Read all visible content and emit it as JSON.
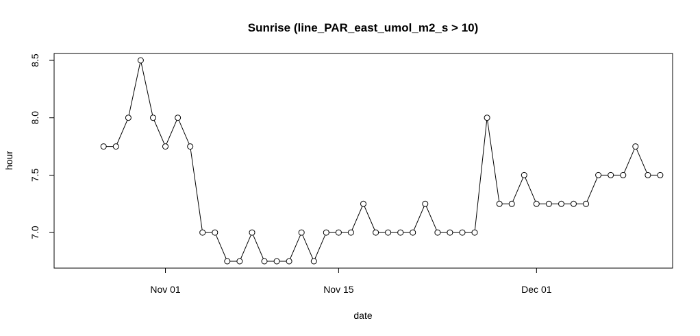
{
  "chart_data": {
    "type": "line",
    "title": "Sunrise (line_PAR_east_umol_m2_s > 10)",
    "xlabel": "date",
    "ylabel": "hour",
    "x_tick_labels": [
      {
        "date": "2022-11-01",
        "label": "Nov 01"
      },
      {
        "date": "2022-11-15",
        "label": "Nov 15"
      },
      {
        "date": "2022-12-01",
        "label": "Dec 01"
      }
    ],
    "y_ticks": [
      7.0,
      7.5,
      8.0,
      8.5
    ],
    "y_tick_labels": [
      "7.0",
      "7.5",
      "8.0",
      "8.5"
    ],
    "xlim": [
      "2022-10-23",
      "2022-12-12"
    ],
    "ylim": [
      6.69,
      8.56
    ],
    "grid": false,
    "marker": "open-circle",
    "line_color": "#000000",
    "series": [
      {
        "x": [
          "2022-10-26",
          "2022-10-27",
          "2022-10-28",
          "2022-10-29",
          "2022-10-30",
          "2022-10-31",
          "2022-11-01",
          "2022-11-02",
          "2022-11-03",
          "2022-11-04",
          "2022-11-05",
          "2022-11-06",
          "2022-11-07",
          "2022-11-08",
          "2022-11-09",
          "2022-11-10",
          "2022-11-11",
          "2022-11-12",
          "2022-11-13",
          "2022-11-14",
          "2022-11-15",
          "2022-11-16",
          "2022-11-17",
          "2022-11-18",
          "2022-11-19",
          "2022-11-20",
          "2022-11-21",
          "2022-11-22",
          "2022-11-23",
          "2022-11-24",
          "2022-11-25",
          "2022-11-26",
          "2022-11-27",
          "2022-11-28",
          "2022-11-29",
          "2022-11-30",
          "2022-12-01",
          "2022-12-02",
          "2022-12-03",
          "2022-12-04",
          "2022-12-05",
          "2022-12-06",
          "2022-12-07",
          "2022-12-08",
          "2022-12-09",
          "2022-12-10",
          "2022-12-11"
        ],
        "values": [
          null,
          7.75,
          7.75,
          8.0,
          8.5,
          8.0,
          7.75,
          8.0,
          7.75,
          7.0,
          7.0,
          6.75,
          6.75,
          7.0,
          6.75,
          6.75,
          6.75,
          7.0,
          6.75,
          7.0,
          7.0,
          7.0,
          7.25,
          7.0,
          7.0,
          7.0,
          7.0,
          7.25,
          7.0,
          7.0,
          7.0,
          7.0,
          8.0,
          7.25,
          7.25,
          7.5,
          7.25,
          7.25,
          7.25,
          7.25,
          7.25,
          7.5,
          7.5,
          7.5,
          7.75,
          7.5,
          7.5
        ]
      }
    ]
  }
}
